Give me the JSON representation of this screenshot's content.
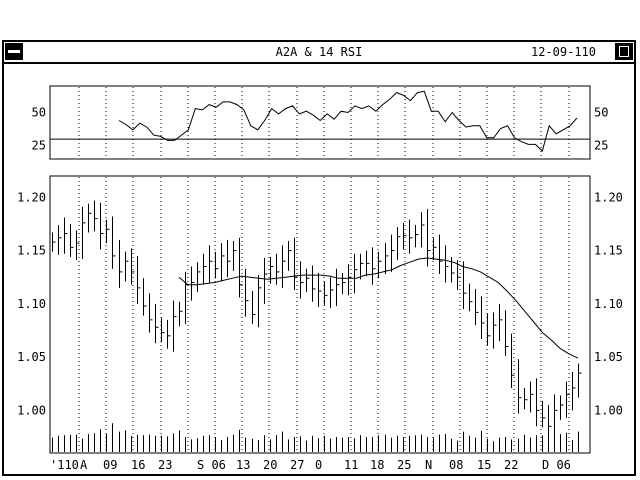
{
  "window": {
    "title": "A2A & 14 RSI",
    "date": "12-09-110",
    "system_menu_icon": "minus-bar-icon",
    "maximize_icon": "window-frame-icon"
  },
  "chart_data": [
    {
      "type": "line",
      "title": "",
      "ylabel": "",
      "ylim": [
        15,
        70
      ],
      "y_ticks": [
        "50",
        "25"
      ],
      "y_tick_values": [
        50,
        25
      ],
      "reference_line": 30,
      "series": [
        {
          "values": [
            44,
            41,
            37,
            42,
            39,
            33,
            32,
            29,
            29,
            33,
            37,
            53,
            52,
            56,
            54,
            58,
            58,
            56,
            52,
            40,
            37,
            44,
            53,
            49,
            53,
            55,
            49,
            51,
            48,
            44,
            49,
            45,
            51,
            50,
            55,
            53,
            55,
            51,
            56,
            60,
            65,
            63,
            59,
            65,
            66,
            51,
            51,
            43,
            50,
            44,
            39,
            40,
            40,
            31,
            31,
            38,
            40,
            31,
            28,
            26,
            26,
            21,
            40,
            34,
            37,
            40,
            46
          ]
        }
      ]
    },
    {
      "type": "bar",
      "title": "",
      "ylabel": "",
      "ylim": [
        0.96,
        1.22
      ],
      "y_ticks": [
        "1.20",
        "1.15",
        "1.10",
        "1.05",
        "1.00"
      ],
      "y_tick_values": [
        1.2,
        1.15,
        1.1,
        1.05,
        1.0
      ],
      "x_tick_labels": [
        "'110",
        "A",
        "09",
        "16",
        "23",
        "S 06",
        "13",
        "20",
        "27",
        "0",
        "11",
        "18",
        "25",
        "N",
        "08",
        "15",
        "22",
        "D 06"
      ],
      "price_close": [
        1.158,
        1.162,
        1.166,
        1.153,
        1.157,
        1.176,
        1.185,
        1.18,
        1.166,
        1.17,
        1.145,
        1.13,
        1.14,
        1.13,
        1.115,
        1.098,
        1.085,
        1.078,
        1.073,
        1.07,
        1.088,
        1.093,
        1.118,
        1.12,
        1.13,
        1.135,
        1.14,
        1.133,
        1.145,
        1.14,
        1.15,
        1.118,
        1.103,
        1.09,
        1.115,
        1.128,
        1.135,
        1.13,
        1.14,
        1.15,
        1.125,
        1.12,
        1.124,
        1.114,
        1.112,
        1.108,
        1.113,
        1.118,
        1.12,
        1.125,
        1.132,
        1.138,
        1.138,
        1.133,
        1.14,
        1.145,
        1.15,
        1.163,
        1.164,
        1.162,
        1.165,
        1.174,
        1.15,
        1.153,
        1.14,
        1.135,
        1.129,
        1.125,
        1.11,
        1.102,
        1.092,
        1.082,
        1.07,
        1.08,
        1.085,
        1.06,
        1.033,
        1.012,
        1.01,
        1.015,
        1.0,
        0.993,
        0.985,
        1.0,
        1.005,
        1.015,
        1.021,
        1.035
      ],
      "moving_average": [
        1.125,
        1.118,
        1.118,
        1.119,
        1.12,
        1.122,
        1.124,
        1.126,
        1.125,
        1.124,
        1.123,
        1.124,
        1.125,
        1.126,
        1.127,
        1.127,
        1.127,
        1.126,
        1.124,
        1.124,
        1.124,
        1.127,
        1.128,
        1.13,
        1.132,
        1.136,
        1.139,
        1.142,
        1.143,
        1.142,
        1.141,
        1.139,
        1.135,
        1.133,
        1.13,
        1.125,
        1.12,
        1.112,
        1.103,
        1.093,
        1.083,
        1.073,
        1.066,
        1.058,
        1.053,
        1.049
      ],
      "volume_pct": [
        24,
        27,
        28,
        29,
        29,
        22,
        30,
        31,
        38,
        30,
        48,
        34,
        36,
        27,
        29,
        28,
        29,
        27,
        27,
        26,
        31,
        36,
        25,
        21,
        23,
        27,
        28,
        25,
        20,
        25,
        29,
        37,
        24,
        22,
        20,
        28,
        21,
        28,
        34,
        21,
        25,
        26,
        19,
        27,
        23,
        27,
        22,
        25,
        24,
        25,
        23,
        28,
        25,
        25,
        28,
        29,
        24,
        27,
        25,
        27,
        28,
        29,
        25,
        24,
        29,
        30,
        22,
        19,
        34,
        27,
        24,
        35,
        22,
        18,
        24,
        25,
        21,
        22,
        29,
        24,
        28,
        28,
        23,
        21,
        30,
        32,
        20,
        34
      ]
    }
  ]
}
